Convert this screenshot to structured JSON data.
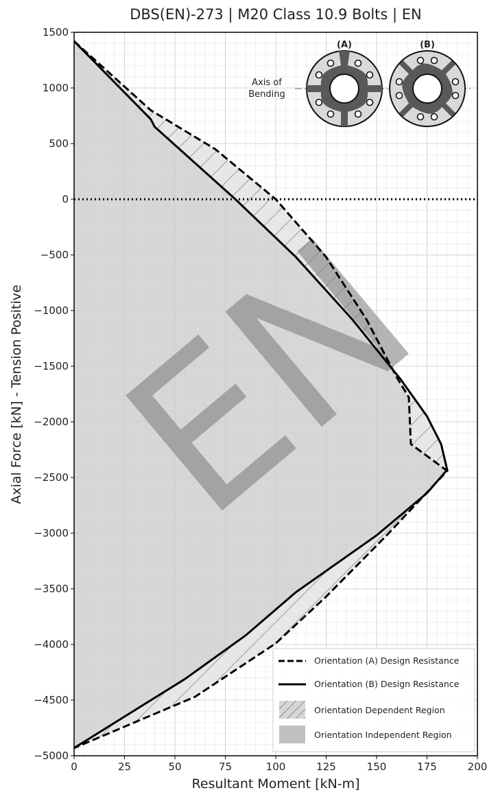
{
  "chart_data": {
    "type": "line",
    "title": "DBS(EN)-273 | M20 Class 10.9 Bolts | EN",
    "xlabel": "Resultant Moment [kN-m]",
    "ylabel": "Axial Force [kN] - Tension Positive",
    "xlim": [
      0,
      200
    ],
    "ylim": [
      -5000,
      1500
    ],
    "x_ticks": [
      "0",
      "25",
      "50",
      "75",
      "100",
      "125",
      "150",
      "175",
      "200"
    ],
    "y_ticks": [
      "1500",
      "1000",
      "500",
      "0",
      "−500",
      "−1000",
      "−1500",
      "−2000",
      "−2500",
      "−3000",
      "−3500",
      "−4000",
      "−4500",
      "−5000"
    ],
    "grid": true,
    "zero_line": "dotted",
    "legend_position": "bottom-right",
    "watermark": "EN",
    "series": [
      {
        "name": "Orientation (A) Design Resistance",
        "style": "dashed",
        "color": "#000000",
        "points": [
          [
            0,
            1420
          ],
          [
            38,
            800
          ],
          [
            70,
            450
          ],
          [
            100,
            0
          ],
          [
            125,
            -520
          ],
          [
            145,
            -1080
          ],
          [
            160,
            -1600
          ],
          [
            166,
            -1780
          ],
          [
            167,
            -2200
          ],
          [
            185,
            -2440
          ],
          [
            155,
            -3020
          ],
          [
            125,
            -3570
          ],
          [
            100,
            -3990
          ],
          [
            60,
            -4470
          ],
          [
            0,
            -4930
          ]
        ]
      },
      {
        "name": "Orientation (B) Design Resistance",
        "style": "solid",
        "color": "#000000",
        "points": [
          [
            0,
            1420
          ],
          [
            38,
            720
          ],
          [
            40,
            650
          ],
          [
            80,
            0
          ],
          [
            110,
            -520
          ],
          [
            138,
            -1080
          ],
          [
            162,
            -1620
          ],
          [
            175,
            -1950
          ],
          [
            182,
            -2200
          ],
          [
            185,
            -2430
          ],
          [
            175,
            -2640
          ],
          [
            150,
            -3020
          ],
          [
            110,
            -3530
          ],
          [
            85,
            -3920
          ],
          [
            55,
            -4310
          ],
          [
            0,
            -4930
          ]
        ]
      }
    ],
    "regions": [
      {
        "name": "Orientation Dependent Region",
        "fill": "hatched",
        "color": "#a0a0a0"
      },
      {
        "name": "Orientation Independent Region",
        "fill": "solid",
        "color": "#c0c0c0"
      }
    ],
    "inset": {
      "labels": [
        "(A)",
        "(B)"
      ],
      "annotation": [
        "Axis of",
        "Bending"
      ]
    }
  }
}
